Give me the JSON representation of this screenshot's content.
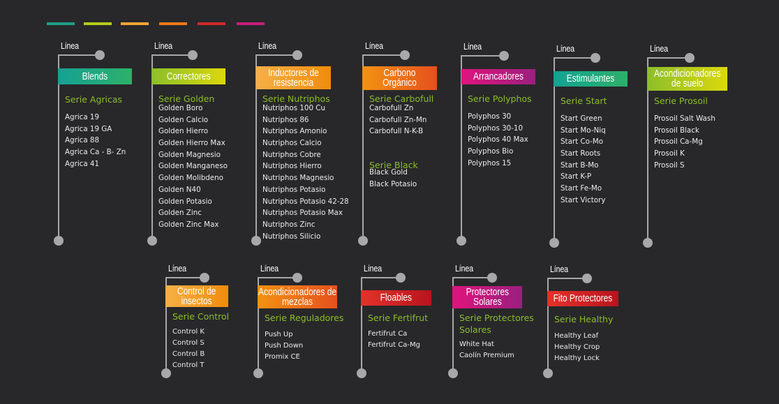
{
  "legend_bars": [
    {
      "name": "teal",
      "color": "#1f9e86"
    },
    {
      "name": "lime",
      "color": "#a8c51f"
    },
    {
      "name": "amber",
      "color": "#f0a030"
    },
    {
      "name": "orange",
      "color": "#ec7a18"
    },
    {
      "name": "red",
      "color": "#d12a2a"
    },
    {
      "name": "magenta",
      "color": "#c81c7c"
    }
  ],
  "line_label": "Línea",
  "lines": [
    {
      "title_1": "Blends",
      "title_2": "",
      "gradient": [
        "#14a294",
        "#2eb06a"
      ],
      "series": [
        {
          "name": "Serie Agricas",
          "items": [
            "Agrica 19",
            "Agrica 19 GA",
            "Agrica 88",
            "Agrica Ca - B- Zn",
            "Agrica 41"
          ]
        }
      ]
    },
    {
      "title_1": "Correctores",
      "title_2": "",
      "gradient": [
        "#8cbf2a",
        "#dcd80c"
      ],
      "series": [
        {
          "name": "Serie Golden",
          "items": [
            "Golden Boro",
            "Golden Calcio",
            "Golden Hierro",
            "Golden Hierro Max",
            "Golden Magnesio",
            "Golden Manganeso",
            "Golden Molibdeno",
            "Golden N40",
            "Golden Potasio",
            "Golden Zinc",
            "Golden Zinc Max"
          ]
        }
      ]
    },
    {
      "title_1": "Inductores de",
      "title_2": "resistencia",
      "gradient": [
        "#f6b046",
        "#f08c0c"
      ],
      "series": [
        {
          "name": "Serie Nutriphos",
          "items": [
            "Nutriphos 100 Cu",
            "Nutriphos 86",
            "Nutriphos Amonio",
            "Nutriphos Calcio",
            "Nutriphos Cobre",
            "Nutriphos Hierro",
            "Nutriphos Magnesio",
            "Nutriphos Potasio",
            "Nutriphos Potasio 42-28",
            "Nutriphos Potasio Max",
            "Nutriphos Zinc",
            "Nutriphos Silicio"
          ]
        }
      ]
    },
    {
      "title_1": "Carbono",
      "title_2": "Orgánico",
      "gradient": [
        "#f39212",
        "#e6501e"
      ],
      "series": [
        {
          "name": "Serie Carbofull",
          "items": [
            "Carbofull Zn",
            "Carbofull Zn-Mn",
            "Carbofull N-K-B"
          ]
        },
        {
          "name": "Serie Black",
          "items": [
            "Black Gold",
            "Black Potasio"
          ]
        }
      ]
    },
    {
      "title_1": "Arrancadores",
      "title_2": "",
      "gradient": [
        "#e0147e",
        "#9a207e"
      ],
      "series": [
        {
          "name": "Serie Polyphos",
          "items": [
            "Polyphos 30",
            "Polyphos 30-10",
            "Polyphos 40 Max",
            "Polyphos Bio",
            "Polyphos 15"
          ]
        }
      ]
    },
    {
      "title_1": "Estimulantes",
      "title_2": "",
      "gradient": [
        "#14a294",
        "#2eb06a"
      ],
      "series": [
        {
          "name": "Serie Start",
          "items": [
            "Start Green",
            "Start Mo-Niq",
            "Start Co-Mo",
            "Start Roots",
            "Start B-Mo",
            "Start K-P",
            "Start Fe-Mo",
            "Start Victory"
          ]
        }
      ]
    },
    {
      "title_1": "Acondicionadores",
      "title_2": "de suelo",
      "gradient": [
        "#8cbf2a",
        "#dcd80c"
      ],
      "series": [
        {
          "name": "Serie Prosoil",
          "items": [
            "Prosoil Salt Wash",
            "Prosoil Black",
            "Prosoil Ca-Mg",
            "Prosoil K",
            "Prosoil S"
          ]
        }
      ]
    },
    {
      "title_1": "Control de",
      "title_2": "insectos",
      "gradient": [
        "#f6b046",
        "#f08c0c"
      ],
      "series": [
        {
          "name": "Serie Control",
          "items": [
            "Control K",
            "Control S",
            "Control B",
            "Control T"
          ]
        }
      ]
    },
    {
      "title_1": "Acondicionadores de",
      "title_2": "mezclas",
      "gradient": [
        "#f39212",
        "#e6501e"
      ],
      "series": [
        {
          "name": "Serie Reguladores",
          "items": [
            "Push Up",
            "Push Down",
            "Promix CE"
          ]
        }
      ]
    },
    {
      "title_1": "Floables",
      "title_2": "",
      "gradient": [
        "#e4322a",
        "#b8141e"
      ],
      "series": [
        {
          "name": "Serie Fertifrut",
          "items": [
            "Fertifrut Ca",
            "Fertifrut Ca-Mg"
          ]
        }
      ]
    },
    {
      "title_1": "Protectores",
      "title_2": "Solares",
      "gradient": [
        "#e0147e",
        "#9a207e"
      ],
      "series": [
        {
          "name": "Serie Protectores",
          "name_2": "Solares",
          "items": [
            "White Hat",
            "Caolín Premium"
          ]
        }
      ]
    },
    {
      "title_1": "Fito Protectores",
      "title_2": "",
      "gradient": [
        "#e4322a",
        "#b8141e"
      ],
      "series": [
        {
          "name": "Serie Healthy",
          "items": [
            "Healthy Leaf",
            "Healthy Crop",
            "Healthy Lock"
          ]
        }
      ]
    }
  ]
}
